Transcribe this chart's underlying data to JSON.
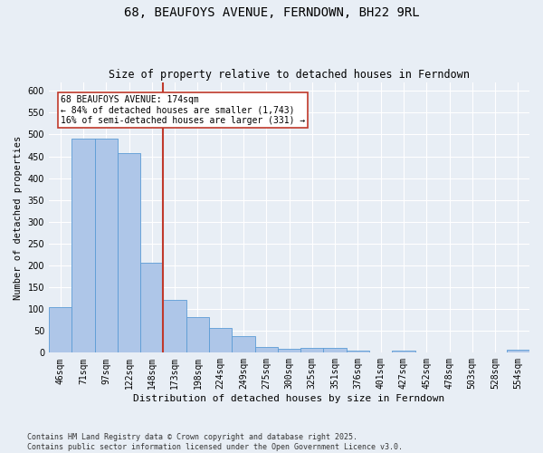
{
  "title": "68, BEAUFOYS AVENUE, FERNDOWN, BH22 9RL",
  "subtitle": "Size of property relative to detached houses in Ferndown",
  "xlabel": "Distribution of detached houses by size in Ferndown",
  "ylabel": "Number of detached properties",
  "categories": [
    "46sqm",
    "71sqm",
    "97sqm",
    "122sqm",
    "148sqm",
    "173sqm",
    "198sqm",
    "224sqm",
    "249sqm",
    "275sqm",
    "300sqm",
    "325sqm",
    "351sqm",
    "376sqm",
    "401sqm",
    "427sqm",
    "452sqm",
    "478sqm",
    "503sqm",
    "528sqm",
    "554sqm"
  ],
  "values": [
    105,
    490,
    490,
    457,
    207,
    122,
    82,
    57,
    38,
    13,
    8,
    11,
    11,
    4,
    0,
    5,
    0,
    0,
    0,
    0,
    6
  ],
  "bar_color": "#aec6e8",
  "bar_edge_color": "#5b9bd5",
  "background_color": "#e8eef5",
  "grid_color": "#ffffff",
  "property_line_color": "#c0392b",
  "property_line_index": 4.5,
  "annotation_box_text": "68 BEAUFOYS AVENUE: 174sqm\n← 84% of detached houses are smaller (1,743)\n16% of semi-detached houses are larger (331) →",
  "annotation_box_color": "#c0392b",
  "footer": "Contains HM Land Registry data © Crown copyright and database right 2025.\nContains public sector information licensed under the Open Government Licence v3.0.",
  "ylim": [
    0,
    620
  ],
  "yticks": [
    0,
    50,
    100,
    150,
    200,
    250,
    300,
    350,
    400,
    450,
    500,
    550,
    600
  ],
  "title_fontsize": 10,
  "subtitle_fontsize": 8.5,
  "axis_label_fontsize": 7.5,
  "tick_fontsize": 7,
  "footer_fontsize": 6,
  "annotation_fontsize": 7
}
